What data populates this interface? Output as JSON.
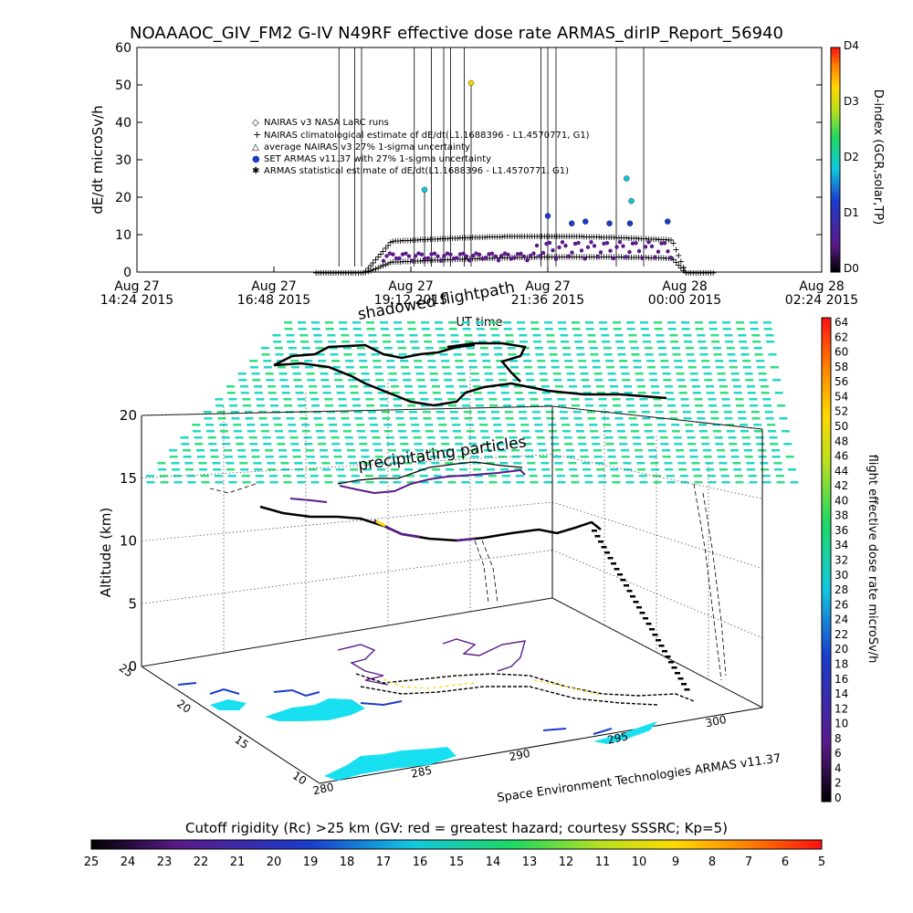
{
  "title": "NOAAAOC_GIV_FM2 G-IV    N49RF   effective dose rate ARMAS_dirIP_Report_56940",
  "top_chart": {
    "type": "scatter",
    "ylabel": "dE/dt microSv/h",
    "xlabel": "UT time",
    "ylim": [
      0,
      60
    ],
    "yticks": [
      0,
      10,
      20,
      30,
      40,
      50,
      60
    ],
    "xticks": [
      {
        "line1": "Aug 27",
        "line2": "14:24 2015"
      },
      {
        "line1": "Aug 27",
        "line2": "16:48 2015"
      },
      {
        "line1": "Aug 27",
        "line2": "19:12 2015"
      },
      {
        "line1": "Aug 27",
        "line2": "21:36 2015"
      },
      {
        "line1": "Aug 28",
        "line2": "00:00 2015"
      },
      {
        "line1": "Aug 28",
        "line2": "02:24 2015"
      }
    ],
    "legend": [
      {
        "symbol": "◇",
        "text": "NAIRAS v3 NASA LaRC runs"
      },
      {
        "symbol": "+",
        "text": "NAIRAS climatological estimate of dE/dt(L1.1688396 - L1.4570771, G1)"
      },
      {
        "symbol": "△",
        "text": "average NAIRAS v3 27% 1-sigma uncertainty"
      },
      {
        "symbol": "●",
        "text": "SET ARMAS v11.37 with 27% 1-sigma uncertainty"
      },
      {
        "symbol": "✱",
        "text": "ARMAS statistical estimate of dE/dt(L1.1688396 - L1.4570771, G1)"
      }
    ],
    "dindex": {
      "label": "D-index (GCR,solar,TP)",
      "ticks": [
        "D0",
        "D1",
        "D2",
        "D3",
        "D4"
      ]
    },
    "spikes": [
      {
        "t": 0.295,
        "v": 60
      },
      {
        "t": 0.318,
        "v": 60
      },
      {
        "t": 0.328,
        "v": 60
      },
      {
        "t": 0.405,
        "v": 60
      },
      {
        "t": 0.42,
        "v": 22
      },
      {
        "t": 0.43,
        "v": 60
      },
      {
        "t": 0.448,
        "v": 60
      },
      {
        "t": 0.458,
        "v": 60
      },
      {
        "t": 0.478,
        "v": 60
      },
      {
        "t": 0.488,
        "v": 50.5
      },
      {
        "t": 0.59,
        "v": 60
      },
      {
        "t": 0.6,
        "v": 60
      },
      {
        "t": 0.612,
        "v": 60
      },
      {
        "t": 0.7,
        "v": 60
      },
      {
        "t": 0.74,
        "v": 60
      }
    ],
    "armas_points": [
      {
        "t": 0.488,
        "v": 50.5,
        "d": 3.9
      },
      {
        "t": 0.42,
        "v": 22,
        "d": 2.6
      },
      {
        "t": 0.715,
        "v": 25,
        "d": 2.8
      },
      {
        "t": 0.722,
        "v": 19,
        "d": 2.5
      },
      {
        "t": 0.72,
        "v": 13,
        "d": 2.2
      },
      {
        "t": 0.6,
        "v": 15,
        "d": 2.0
      },
      {
        "t": 0.635,
        "v": 13,
        "d": 1.8
      },
      {
        "t": 0.655,
        "v": 13.5,
        "d": 1.8
      },
      {
        "t": 0.69,
        "v": 13,
        "d": 1.7
      },
      {
        "t": 0.775,
        "v": 13.5,
        "d": 1.8
      }
    ]
  },
  "bottom_chart": {
    "type": "scatter",
    "zlabel": "Altitude (km)",
    "zticks": [
      0,
      5,
      10,
      15,
      20
    ],
    "y_ticks": [
      10,
      15,
      20,
      25
    ],
    "x_ticks": [
      280,
      285,
      290,
      295,
      300
    ],
    "label_shadowed": "shadowed flightpath",
    "label_precip": "precipitating particles",
    "credit": "Space Environment Technologies ARMAS v11.37",
    "colorbar_label": "flight effective dose rate microSv/h",
    "colorbar_ticks": [
      0,
      2,
      4,
      6,
      8,
      10,
      12,
      14,
      16,
      18,
      20,
      22,
      24,
      26,
      28,
      30,
      32,
      34,
      36,
      38,
      40,
      42,
      44,
      46,
      48,
      50,
      52,
      54,
      56,
      58,
      60,
      62,
      64
    ]
  },
  "cutoff": {
    "title": "Cutoff rigidity (Rc) >25 km (GV: red = greatest hazard; courtesy SSSRC; Kp=5)",
    "ticks": [
      25,
      24,
      23,
      22,
      21,
      20,
      19,
      18,
      17,
      16,
      15,
      14,
      13,
      12,
      11,
      10,
      9,
      8,
      7,
      6,
      5
    ]
  }
}
